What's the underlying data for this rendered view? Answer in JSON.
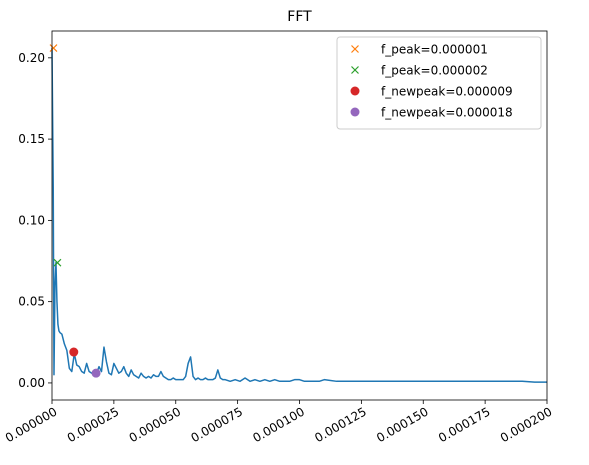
{
  "chart_data": {
    "type": "line",
    "title": "FFT",
    "xlabel": "",
    "ylabel": "",
    "xlim": [
      0,
      0.0002
    ],
    "ylim": [
      -0.0105,
      0.2165
    ],
    "xticks": [
      {
        "value": 0.0,
        "label": "0.000000"
      },
      {
        "value": 2.5e-05,
        "label": "0.000025"
      },
      {
        "value": 5e-05,
        "label": "0.000050"
      },
      {
        "value": 7.5e-05,
        "label": "0.000075"
      },
      {
        "value": 0.0001,
        "label": "0.000100"
      },
      {
        "value": 0.000125,
        "label": "0.000125"
      },
      {
        "value": 0.00015,
        "label": "0.000150"
      },
      {
        "value": 0.000175,
        "label": "0.000175"
      },
      {
        "value": 0.0002,
        "label": "0.000200"
      }
    ],
    "yticks": [
      {
        "value": 0.0,
        "label": "0.00"
      },
      {
        "value": 0.05,
        "label": "0.05"
      },
      {
        "value": 0.1,
        "label": "0.10"
      },
      {
        "value": 0.15,
        "label": "0.15"
      },
      {
        "value": 0.2,
        "label": "0.20"
      }
    ],
    "grid": false,
    "legend_position": "top-right",
    "line_series": {
      "color": "#1f77b4",
      "x": [
        0.0,
        5e-07,
        8e-07,
        1.2e-06,
        1.6e-06,
        2e-06,
        2.4e-06,
        2.8e-06,
        3.2e-06,
        4e-06,
        5e-06,
        6e-06,
        7e-06,
        8e-06,
        9e-06,
        1e-05,
        1.1e-05,
        1.2e-05,
        1.3e-05,
        1.4e-05,
        1.5e-05,
        1.6e-05,
        1.7e-05,
        1.8e-05,
        1.9e-05,
        2e-05,
        2.1e-05,
        2.2e-05,
        2.3e-05,
        2.4e-05,
        2.5e-05,
        2.6e-05,
        2.7e-05,
        2.8e-05,
        2.9e-05,
        3e-05,
        3.1e-05,
        3.2e-05,
        3.3e-05,
        3.4e-05,
        3.5e-05,
        3.6e-05,
        3.7e-05,
        3.8e-05,
        3.9e-05,
        4e-05,
        4.1e-05,
        4.2e-05,
        4.3e-05,
        4.4e-05,
        4.5e-05,
        4.6e-05,
        4.7e-05,
        4.8e-05,
        4.9e-05,
        5e-05,
        5.1e-05,
        5.2e-05,
        5.3e-05,
        5.4e-05,
        5.5e-05,
        5.6e-05,
        5.7e-05,
        5.8e-05,
        5.9e-05,
        6e-05,
        6.1e-05,
        6.2e-05,
        6.3e-05,
        6.4e-05,
        6.5e-05,
        6.6e-05,
        6.7e-05,
        6.8e-05,
        6.9e-05,
        7e-05,
        7.2e-05,
        7.4e-05,
        7.6e-05,
        7.8e-05,
        8e-05,
        8.2e-05,
        8.4e-05,
        8.6e-05,
        8.8e-05,
        9e-05,
        9.2e-05,
        9.4e-05,
        9.6e-05,
        9.8e-05,
        0.0001,
        0.000102,
        0.000104,
        0.000106,
        0.000108,
        0.00011,
        0.000115,
        0.00012,
        0.000125,
        0.00013,
        0.000135,
        0.00014,
        0.000145,
        0.00015,
        0.000155,
        0.00016,
        0.000165,
        0.00017,
        0.000175,
        0.00018,
        0.000185,
        0.00019,
        0.000195,
        0.0002
      ],
      "y": [
        0.206,
        0.12,
        0.005,
        0.06,
        0.074,
        0.05,
        0.036,
        0.032,
        0.031,
        0.03,
        0.024,
        0.02,
        0.009,
        0.007,
        0.018,
        0.011,
        0.01,
        0.007,
        0.006,
        0.012,
        0.007,
        0.006,
        0.005,
        0.006,
        0.01,
        0.007,
        0.022,
        0.013,
        0.006,
        0.005,
        0.012,
        0.009,
        0.006,
        0.007,
        0.01,
        0.006,
        0.004,
        0.008,
        0.005,
        0.004,
        0.003,
        0.006,
        0.004,
        0.003,
        0.004,
        0.003,
        0.005,
        0.004,
        0.004,
        0.007,
        0.004,
        0.003,
        0.002,
        0.002,
        0.003,
        0.002,
        0.002,
        0.002,
        0.002,
        0.004,
        0.012,
        0.016,
        0.004,
        0.002,
        0.003,
        0.002,
        0.002,
        0.003,
        0.002,
        0.002,
        0.002,
        0.003,
        0.008,
        0.003,
        0.002,
        0.002,
        0.001,
        0.002,
        0.001,
        0.003,
        0.001,
        0.002,
        0.001,
        0.002,
        0.001,
        0.002,
        0.001,
        0.001,
        0.001,
        0.002,
        0.002,
        0.001,
        0.001,
        0.001,
        0.001,
        0.002,
        0.001,
        0.001,
        0.001,
        0.001,
        0.001,
        0.001,
        0.001,
        0.001,
        0.001,
        0.001,
        0.001,
        0.001,
        0.001,
        0.001,
        0.001,
        0.001,
        0.0005,
        0.0005
      ]
    },
    "markers": [
      {
        "label": "f_peak=0.000001",
        "x": 6e-07,
        "y": 0.206,
        "marker": "x",
        "color": "#ff7f0e"
      },
      {
        "label": "f_peak=0.000002",
        "x": 2.2e-06,
        "y": 0.074,
        "marker": "x",
        "color": "#2ca02c"
      },
      {
        "label": "f_newpeak=0.000009",
        "x": 8.8e-06,
        "y": 0.019,
        "marker": "o",
        "color": "#d62728"
      },
      {
        "label": "f_newpeak=0.000018",
        "x": 1.78e-05,
        "y": 0.006,
        "marker": "o",
        "color": "#9467bd"
      }
    ]
  }
}
